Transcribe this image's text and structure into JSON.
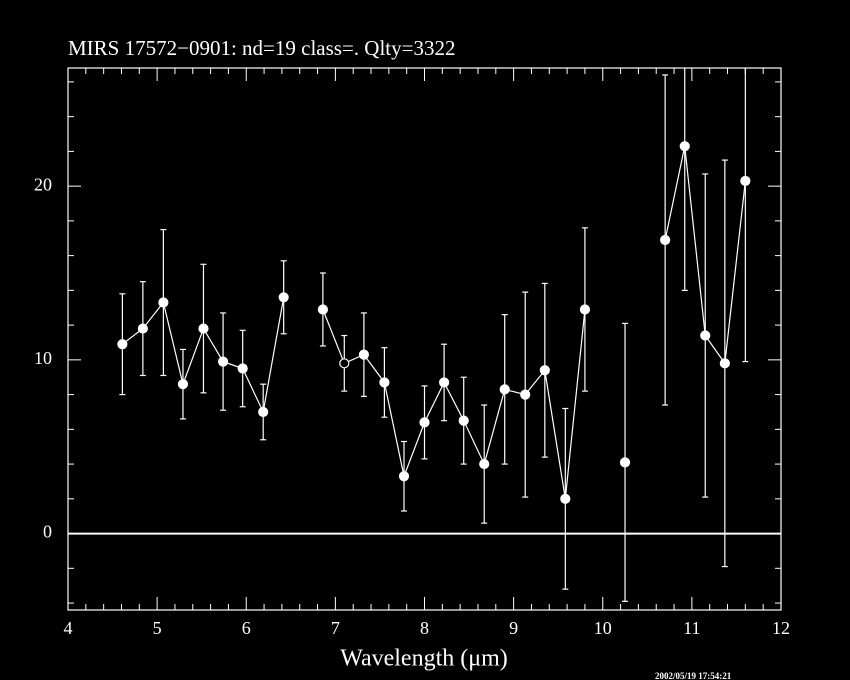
{
  "chart_data": {
    "type": "errorbar",
    "title": "MIRS 17572−0901:    nd=19   class=.   Qlty=3322",
    "xlabel": "Wavelength (μm)",
    "timestamp": "2002/05/19 17:54:21",
    "x": [
      4.61,
      4.84,
      5.07,
      5.29,
      5.52,
      5.74,
      5.96,
      6.19,
      6.42,
      null,
      6.86,
      7.1,
      7.32,
      7.55,
      7.77,
      8.0,
      8.22,
      8.44,
      8.67,
      8.9,
      9.13,
      9.35,
      9.58,
      9.8,
      null,
      10.25,
      null,
      10.7,
      10.92,
      11.15,
      11.37,
      11.6
    ],
    "values": [
      10.9,
      11.8,
      13.3,
      8.6,
      11.8,
      9.9,
      9.5,
      7.0,
      13.6,
      null,
      12.9,
      9.8,
      10.3,
      8.7,
      3.3,
      6.4,
      8.7,
      6.5,
      4.0,
      8.3,
      8.0,
      9.4,
      2.0,
      12.9,
      null,
      4.1,
      null,
      16.9,
      22.3,
      11.4,
      9.8,
      20.3
    ],
    "errors": [
      2.9,
      2.7,
      4.2,
      2.0,
      3.7,
      2.8,
      2.2,
      1.6,
      2.1,
      null,
      2.1,
      1.6,
      2.4,
      2.0,
      2.0,
      2.1,
      2.2,
      2.5,
      3.4,
      4.3,
      5.9,
      5.0,
      5.2,
      4.7,
      null,
      8.0,
      null,
      9.5,
      8.3,
      9.3,
      11.7,
      10.4
    ],
    "open_markers": [
      11
    ],
    "color": "#ffffff",
    "xlim": [
      4,
      12
    ],
    "xticks": [
      4,
      5,
      6,
      7,
      8,
      9,
      10,
      11,
      12
    ],
    "xminor_ticks": [
      4.2,
      4.4,
      4.6,
      4.8,
      5.2,
      5.4,
      5.6,
      5.8,
      6.2,
      6.4,
      6.6,
      6.8,
      7.2,
      7.4,
      7.6,
      7.8,
      8.2,
      8.4,
      8.6,
      8.8,
      9.2,
      9.4,
      9.6,
      9.8,
      10.2,
      10.4,
      10.6,
      10.8,
      11.2,
      11.4,
      11.6,
      11.8
    ],
    "ylim": [
      -4.4,
      26.8
    ],
    "yticks": [
      0,
      10,
      20
    ],
    "yminor_ticks": [
      -4,
      -2,
      2,
      4,
      6,
      8,
      12,
      14,
      16,
      18,
      22,
      24,
      26
    ],
    "zero_line": true
  }
}
